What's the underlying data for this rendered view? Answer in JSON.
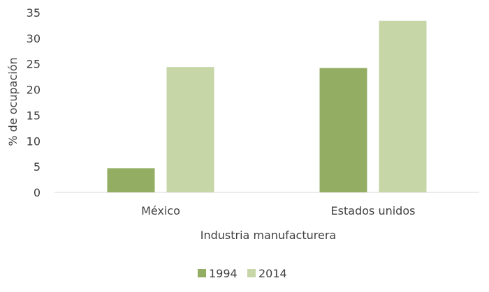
{
  "chart_data": {
    "type": "bar",
    "categories": [
      "México",
      "Estados unidos"
    ],
    "series": [
      {
        "name": "1994",
        "values": [
          4.7,
          24.2
        ],
        "color": "#93ad63"
      },
      {
        "name": "2014",
        "values": [
          24.4,
          33.4
        ],
        "color": "#c6d6a7"
      }
    ],
    "xlabel": "Industria manufacturera",
    "ylabel": "% de ocupación",
    "ylim": [
      0,
      35
    ],
    "yticks": [
      0,
      5,
      10,
      15,
      20,
      25,
      30,
      35
    ],
    "grid": false,
    "legend_position": "bottom"
  }
}
